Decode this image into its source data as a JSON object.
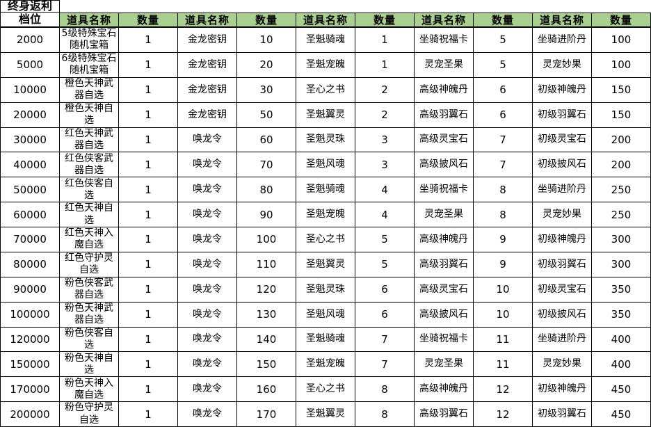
{
  "header": {
    "tier_line1": "终身返利",
    "tier_line2": "档位",
    "item_label": "道具名称",
    "qty_label": "数量",
    "pair_count": 5
  },
  "colors": {
    "header_fill": "#A9D08E",
    "border": "#000000",
    "text": "#000000",
    "background": "#FFFFFF"
  },
  "rows": [
    {
      "tier": "2000",
      "items": [
        {
          "name": "5级特殊宝石随机宝箱",
          "qty": "1"
        },
        {
          "name": "金龙密钥",
          "qty": "10"
        },
        {
          "name": "圣魁骑魂",
          "qty": "1"
        },
        {
          "name": "坐骑祝福卡",
          "qty": "5"
        },
        {
          "name": "坐骑进阶丹",
          "qty": "100"
        }
      ]
    },
    {
      "tier": "5000",
      "items": [
        {
          "name": "6级特殊宝石随机宝箱",
          "qty": "1"
        },
        {
          "name": "金龙密钥",
          "qty": "20"
        },
        {
          "name": "圣魁宠魄",
          "qty": "1"
        },
        {
          "name": "灵宠圣果",
          "qty": "5"
        },
        {
          "name": "灵宠妙果",
          "qty": "100"
        }
      ]
    },
    {
      "tier": "10000",
      "items": [
        {
          "name": "橙色天神武器自选",
          "qty": "1"
        },
        {
          "name": "金龙密钥",
          "qty": "30"
        },
        {
          "name": "圣心之书",
          "qty": "2"
        },
        {
          "name": "高级神魄丹",
          "qty": "6"
        },
        {
          "name": "初级神魄丹",
          "qty": "150"
        }
      ]
    },
    {
      "tier": "20000",
      "items": [
        {
          "name": "橙色天神自选",
          "qty": "1"
        },
        {
          "name": "金龙密钥",
          "qty": "50"
        },
        {
          "name": "圣魁翼灵",
          "qty": "2"
        },
        {
          "name": "高级羽翼石",
          "qty": "6"
        },
        {
          "name": "初级羽翼石",
          "qty": "150"
        }
      ]
    },
    {
      "tier": "30000",
      "items": [
        {
          "name": "红色天神武器自选",
          "qty": "1"
        },
        {
          "name": "唤龙令",
          "qty": "60"
        },
        {
          "name": "圣魁灵珠",
          "qty": "3"
        },
        {
          "name": "高级灵宝石",
          "qty": "7"
        },
        {
          "name": "初级灵宝石",
          "qty": "200"
        }
      ]
    },
    {
      "tier": "40000",
      "items": [
        {
          "name": "红色侠客武器自选",
          "qty": "1"
        },
        {
          "name": "唤龙令",
          "qty": "70"
        },
        {
          "name": "圣魁风魂",
          "qty": "3"
        },
        {
          "name": "高级披风石",
          "qty": "7"
        },
        {
          "name": "初级披风石",
          "qty": "200"
        }
      ]
    },
    {
      "tier": "50000",
      "items": [
        {
          "name": "红色侠客自选",
          "qty": "1"
        },
        {
          "name": "唤龙令",
          "qty": "80"
        },
        {
          "name": "圣魁骑魂",
          "qty": "4"
        },
        {
          "name": "坐骑祝福卡",
          "qty": "8"
        },
        {
          "name": "坐骑进阶丹",
          "qty": "250"
        }
      ]
    },
    {
      "tier": "60000",
      "items": [
        {
          "name": "红色天神自选",
          "qty": "1"
        },
        {
          "name": "唤龙令",
          "qty": "90"
        },
        {
          "name": "圣魁宠魄",
          "qty": "4"
        },
        {
          "name": "灵宠圣果",
          "qty": "8"
        },
        {
          "name": "灵宠妙果",
          "qty": "250"
        }
      ]
    },
    {
      "tier": "70000",
      "items": [
        {
          "name": "红色天神入魔自选",
          "qty": "1"
        },
        {
          "name": "唤龙令",
          "qty": "100"
        },
        {
          "name": "圣心之书",
          "qty": "5"
        },
        {
          "name": "高级神魄丹",
          "qty": "9"
        },
        {
          "name": "初级神魄丹",
          "qty": "300"
        }
      ]
    },
    {
      "tier": "80000",
      "items": [
        {
          "name": "红色守护灵自选",
          "qty": "1"
        },
        {
          "name": "唤龙令",
          "qty": "110"
        },
        {
          "name": "圣魁翼灵",
          "qty": "5"
        },
        {
          "name": "高级羽翼石",
          "qty": "9"
        },
        {
          "name": "初级羽翼石",
          "qty": "300"
        }
      ]
    },
    {
      "tier": "90000",
      "items": [
        {
          "name": "粉色侠客武器自选",
          "qty": "1"
        },
        {
          "name": "唤龙令",
          "qty": "120"
        },
        {
          "name": "圣魁灵珠",
          "qty": "6"
        },
        {
          "name": "高级灵宝石",
          "qty": "10"
        },
        {
          "name": "初级灵宝石",
          "qty": "350"
        }
      ]
    },
    {
      "tier": "100000",
      "items": [
        {
          "name": "粉色天神武器自选",
          "qty": "1"
        },
        {
          "name": "唤龙令",
          "qty": "130"
        },
        {
          "name": "圣魁风魂",
          "qty": "6"
        },
        {
          "name": "高级披风石",
          "qty": "10"
        },
        {
          "name": "初级披风石",
          "qty": "350"
        }
      ]
    },
    {
      "tier": "120000",
      "items": [
        {
          "name": "粉色侠客自选",
          "qty": "1"
        },
        {
          "name": "唤龙令",
          "qty": "140"
        },
        {
          "name": "圣魁骑魂",
          "qty": "7"
        },
        {
          "name": "坐骑祝福卡",
          "qty": "11"
        },
        {
          "name": "坐骑进阶丹",
          "qty": "400"
        }
      ]
    },
    {
      "tier": "150000",
      "items": [
        {
          "name": "粉色天神自选",
          "qty": "1"
        },
        {
          "name": "唤龙令",
          "qty": "150"
        },
        {
          "name": "圣魁宠魄",
          "qty": "7"
        },
        {
          "name": "灵宠圣果",
          "qty": "11"
        },
        {
          "name": "灵宠妙果",
          "qty": "400"
        }
      ]
    },
    {
      "tier": "170000",
      "items": [
        {
          "name": "粉色天神入魔自选",
          "qty": "1"
        },
        {
          "name": "唤龙令",
          "qty": "160"
        },
        {
          "name": "圣心之书",
          "qty": "8"
        },
        {
          "name": "高级神魄丹",
          "qty": "12"
        },
        {
          "name": "初级神魄丹",
          "qty": "450"
        }
      ]
    },
    {
      "tier": "200000",
      "items": [
        {
          "name": "粉色守护灵自选",
          "qty": "1"
        },
        {
          "name": "唤龙令",
          "qty": "170"
        },
        {
          "name": "圣魁翼灵",
          "qty": "8"
        },
        {
          "name": "高级羽翼石",
          "qty": "12"
        },
        {
          "name": "初级羽翼石",
          "qty": "450"
        }
      ]
    }
  ]
}
